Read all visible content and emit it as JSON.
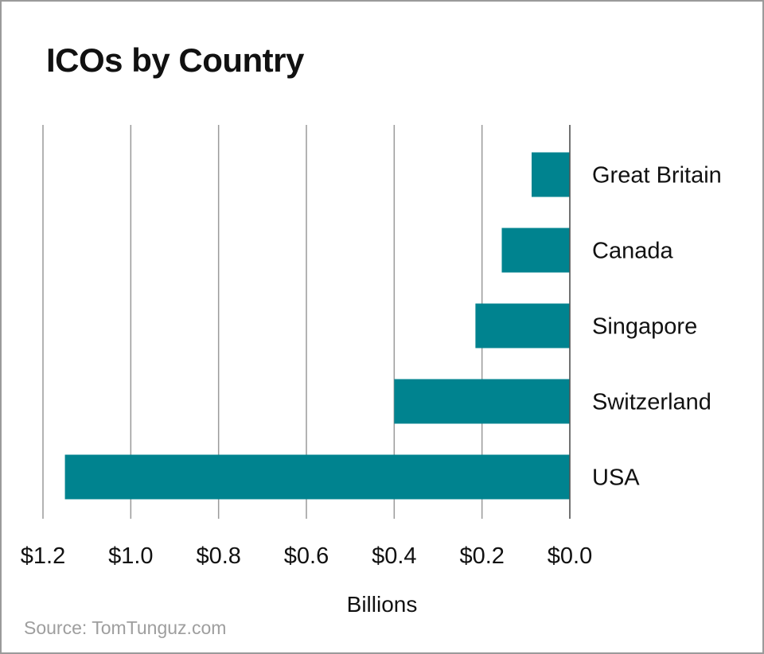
{
  "chart_data": {
    "type": "bar",
    "orientation": "horizontal",
    "title": "ICOs by Country",
    "xlabel": "Billions",
    "ylabel": "",
    "categories": [
      "Great Britain",
      "Canada",
      "Singapore",
      "Switzerland",
      "USA"
    ],
    "values": [
      0.087,
      0.155,
      0.215,
      0.4,
      1.15
    ],
    "xlim": [
      1.2,
      0.0
    ],
    "x_ticks": [
      1.2,
      1.0,
      0.8,
      0.6,
      0.4,
      0.2,
      0.0
    ],
    "x_tick_labels": [
      "$1.2",
      "$1.0",
      "$0.8",
      "$0.6",
      "$0.4",
      "$0.2",
      "$0.0"
    ],
    "grid": true,
    "bar_color": "#00838f",
    "source": "Source: TomTunguz.com"
  }
}
